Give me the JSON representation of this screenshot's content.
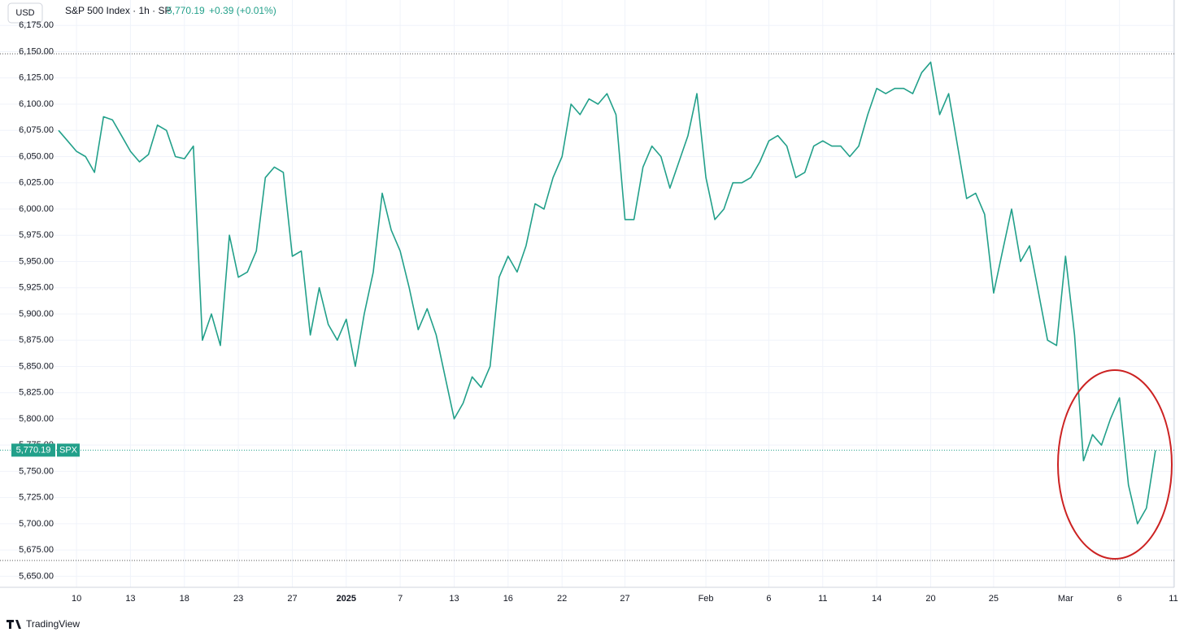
{
  "chart_data": {
    "type": "line",
    "currency": "USD",
    "title": "S&P 500 Index · 1h · SP",
    "price_text": "5,770.19",
    "change_text": "+0.39 (+0.01%)",
    "symbol": "SPX",
    "brand": "TradingView",
    "color": "#22a08a",
    "annotation_color": "#cc2222",
    "grid": true,
    "last_price": {
      "value": 5770.19,
      "label": "5,770.19"
    },
    "range_lines": [
      6148,
      5665
    ],
    "ylim": [
      5641,
      6176
    ],
    "yticks": [
      {
        "value": 5650,
        "label": "5,650.00"
      },
      {
        "value": 5675,
        "label": "5,675.00"
      },
      {
        "value": 5700,
        "label": "5,700.00"
      },
      {
        "value": 5725,
        "label": "5,725.00"
      },
      {
        "value": 5750,
        "label": "5,750.00"
      },
      {
        "value": 5775,
        "label": "5,775.00"
      },
      {
        "value": 5800,
        "label": "5,800.00"
      },
      {
        "value": 5825,
        "label": "5,825.00"
      },
      {
        "value": 5850,
        "label": "5,850.00"
      },
      {
        "value": 5875,
        "label": "5,875.00"
      },
      {
        "value": 5900,
        "label": "5,900.00"
      },
      {
        "value": 5925,
        "label": "5,925.00"
      },
      {
        "value": 5950,
        "label": "5,950.00"
      },
      {
        "value": 5975,
        "label": "5,975.00"
      },
      {
        "value": 6000,
        "label": "6,000.00"
      },
      {
        "value": 6025,
        "label": "6,025.00"
      },
      {
        "value": 6050,
        "label": "6,050.00"
      },
      {
        "value": 6075,
        "label": "6,075.00"
      },
      {
        "value": 6100,
        "label": "6,100.00"
      },
      {
        "value": 6125,
        "label": "6,125.00"
      },
      {
        "value": 6150,
        "label": "6,150.00"
      },
      {
        "value": 6175,
        "label": "6,175.00"
      }
    ],
    "categories": [
      null,
      null,
      "10",
      null,
      null,
      null,
      null,
      null,
      "13",
      null,
      null,
      null,
      null,
      null,
      "18",
      null,
      null,
      null,
      null,
      null,
      "23",
      null,
      null,
      null,
      null,
      null,
      "27",
      null,
      null,
      null,
      null,
      null,
      "2025",
      null,
      null,
      null,
      null,
      null,
      "7",
      null,
      null,
      null,
      null,
      null,
      "13",
      null,
      null,
      null,
      null,
      null,
      "16",
      null,
      null,
      null,
      null,
      null,
      "22",
      null,
      null,
      null,
      null,
      null,
      null,
      "27",
      null,
      null,
      null,
      null,
      null,
      null,
      null,
      null,
      "Feb",
      null,
      null,
      null,
      null,
      null,
      null,
      "6",
      null,
      null,
      null,
      null,
      null,
      "11",
      null,
      null,
      null,
      null,
      null,
      "14",
      null,
      null,
      null,
      null,
      null,
      "20",
      null,
      null,
      null,
      null,
      null,
      null,
      "25",
      null,
      null,
      null,
      null,
      null,
      null,
      null,
      "Mar",
      null,
      null,
      null,
      null,
      null,
      "6",
      null,
      null,
      null,
      null,
      null,
      "11"
    ],
    "series": [
      {
        "name": "SPX",
        "color": "#22a08a",
        "values": [
          6075,
          6065,
          6055,
          6050,
          6035,
          6088,
          6085,
          6070,
          6055,
          6045,
          6052,
          6080,
          6075,
          6050,
          6048,
          6060,
          5875,
          5900,
          5870,
          5975,
          5935,
          5940,
          5960,
          6030,
          6040,
          6035,
          5955,
          5960,
          5880,
          5925,
          5890,
          5875,
          5895,
          5850,
          5900,
          5940,
          6015,
          5980,
          5960,
          5925,
          5885,
          5905,
          5880,
          5840,
          5800,
          5815,
          5840,
          5830,
          5850,
          5935,
          5955,
          5940,
          5965,
          6005,
          6000,
          6030,
          6050,
          6100,
          6090,
          6105,
          6100,
          6110,
          6090,
          5990,
          5990,
          6040,
          6060,
          6050,
          6020,
          6045,
          6070,
          6110,
          6030,
          5990,
          6000,
          6025,
          6025,
          6030,
          6045,
          6065,
          6070,
          6060,
          6030,
          6035,
          6060,
          6065,
          6060,
          6060,
          6050,
          6060,
          6090,
          6115,
          6110,
          6115,
          6115,
          6110,
          6130,
          6140,
          6090,
          6110,
          6060,
          6010,
          6015,
          5995,
          5920,
          5960,
          6000,
          5950,
          5965,
          5920,
          5875,
          5870,
          5955,
          5880,
          5760,
          5785,
          5775,
          5800,
          5820,
          5737,
          5700,
          5715,
          5770,
          null,
          null
        ]
      }
    ]
  }
}
